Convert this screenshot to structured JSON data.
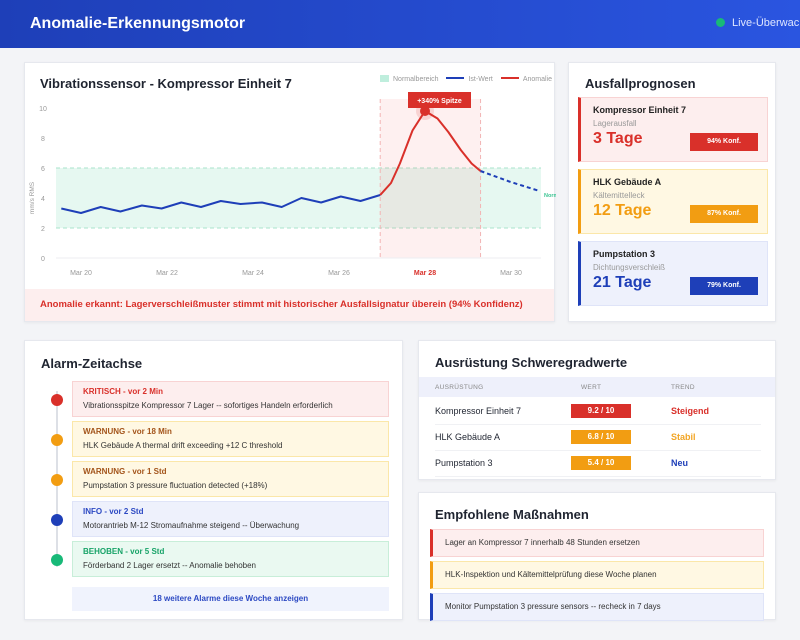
{
  "header": {
    "title": "Anomalie-Erkennungsmotor",
    "status": "Live-Überwachung",
    "status_color": "#18b978"
  },
  "chart": {
    "title": "Vibrationssensor - Kompressor Einheit 7",
    "legend": [
      "Normalbereich",
      "Ist-Wert",
      "Anomalie"
    ],
    "spike_label": "+340% Spitze",
    "anomaly_message": "Anomalie erkannt: Lagerverschleißmuster stimmt mit historischer Ausfallsignatur überein (94% Konfidenz)"
  },
  "chart_data": {
    "type": "line",
    "title": "Vibrationssensor - Kompressor Einheit 7",
    "ylabel": "mm/s RMS",
    "ylim": [
      0,
      10
    ],
    "yticks": [
      "0",
      "2",
      "4",
      "6",
      "8",
      "10"
    ],
    "xticks": [
      "Mar 20",
      "Mar 22",
      "Mar 24",
      "Mar 26",
      "Mar 28",
      "Mar 30"
    ],
    "highlight_xtick": "Mar 28",
    "grid": false,
    "legend_position": "top-right",
    "normal_band": {
      "label": "Normal",
      "range": [
        2,
        6
      ],
      "color": "#bfeedd"
    },
    "anomaly_window": [
      "Mar 26 23:00",
      "Mar 29 07:00"
    ],
    "series": [
      {
        "name": "Ist-Wert",
        "color": "#1e3fb8",
        "style": "solid",
        "points": [
          [
            "Mar 19 13:00",
            3.3
          ],
          [
            "Mar 20 00:00",
            3.0
          ],
          [
            "Mar 20 11:00",
            3.4
          ],
          [
            "Mar 20 22:00",
            3.1
          ],
          [
            "Mar 21 10:00",
            3.5
          ],
          [
            "Mar 21 21:00",
            3.3
          ],
          [
            "Mar 22 08:00",
            3.7
          ],
          [
            "Mar 22 19:00",
            3.4
          ],
          [
            "Mar 23 06:00",
            3.8
          ],
          [
            "Mar 23 17:00",
            3.6
          ],
          [
            "Mar 24 05:00",
            3.7
          ],
          [
            "Mar 24 16:00",
            3.4
          ],
          [
            "Mar 25 03:00",
            4.0
          ],
          [
            "Mar 25 14:00",
            3.7
          ],
          [
            "Mar 26 01:00",
            4.1
          ],
          [
            "Mar 26 12:00",
            3.8
          ],
          [
            "Mar 26 23:00",
            4.2
          ]
        ]
      },
      {
        "name": "Anomalie",
        "color": "#d9302a",
        "style": "solid",
        "points": [
          [
            "Mar 26 23:00",
            4.2
          ],
          [
            "Mar 27 05:00",
            5.0
          ],
          [
            "Mar 27 10:00",
            6.3
          ],
          [
            "Mar 27 17:00",
            8.5
          ],
          [
            "Mar 28 00:00",
            9.8
          ],
          [
            "Mar 28 07:00",
            9.3
          ],
          [
            "Mar 28 13:00",
            8.4
          ],
          [
            "Mar 28 20:00",
            7.2
          ],
          [
            "Mar 29 02:00",
            6.3
          ],
          [
            "Mar 29 07:00",
            5.8
          ]
        ]
      },
      {
        "name": "Prognose",
        "color": "#1e3fb8",
        "style": "dashed",
        "points": [
          [
            "Mar 29 07:00",
            5.8
          ],
          [
            "Mar 29 23:00",
            5.1
          ],
          [
            "Mar 30 15:00",
            4.5
          ]
        ]
      }
    ],
    "peak": [
      "Mar 28 00:00",
      9.8
    ]
  },
  "forecast": {
    "title": "Ausfallprognosen",
    "items": [
      {
        "name": "Kompressor Einheit 7",
        "issue": "Lagerausfall",
        "days": "3 Tage",
        "conf": "94% Konf.",
        "color": "#d9302a",
        "bg": "#fdeeee",
        "border": "#f8d3d3"
      },
      {
        "name": "HLK Gebäude A",
        "issue": "Kältemittelleck",
        "days": "12 Tage",
        "conf": "87% Konf.",
        "color": "#f29d12",
        "bg": "#fff8e3",
        "border": "#fbe7a9"
      },
      {
        "name": "Pumpstation 3",
        "issue": "Dichtungsverschleiß",
        "days": "21 Tage",
        "conf": "79% Konf.",
        "color": "#1e3fb8",
        "bg": "#eef1fc",
        "border": "#dfe4f8"
      }
    ]
  },
  "alarms": {
    "title": "Alarm-Zeitachse",
    "items": [
      {
        "head": "KRITISCH - vor 2 Min",
        "text": "Vibrationsspitze Kompressor 7 Lager -- sofortiges Handeln erforderlich",
        "color": "#d9302a",
        "dot": "#d9302a",
        "bg": "#fdeeee",
        "border": "#f8d3d3"
      },
      {
        "head": "WARNUNG - vor 18 Min",
        "text": "HLK Gebäude A thermal drift exceeding +12 C threshold",
        "color": "#a3541a",
        "dot": "#f29d12",
        "bg": "#fff8e3",
        "border": "#fbe7a9"
      },
      {
        "head": "WARNUNG - vor 1 Std",
        "text": "Pumpstation 3 pressure fluctuation detected (+18%)",
        "color": "#a3541a",
        "dot": "#f29d12",
        "bg": "#fff8e3",
        "border": "#fbe7a9"
      },
      {
        "head": "INFO - vor 2 Std",
        "text": "Motorantrieb M-12 Stromaufnahme steigend -- Überwachung",
        "color": "#2c49c3",
        "dot": "#1e3fb8",
        "bg": "#eef1fc",
        "border": "#dfe4f8"
      },
      {
        "head": "BEHOBEN - vor 5 Std",
        "text": "Förderband 2 Lager ersetzt -- Anomalie behoben",
        "color": "#18a368",
        "dot": "#18b978",
        "bg": "#eaf9f1",
        "border": "#c8eed9"
      }
    ],
    "more": "18 weitere Alarme diese Woche anzeigen"
  },
  "equipment": {
    "title": "Ausrüstung Schweregradwerte",
    "columns": [
      "AUSRÜSTUNG",
      "WERT",
      "TREND"
    ],
    "rows": [
      {
        "name": "Kompressor Einheit 7",
        "value": "9.2 / 10",
        "trend": "Steigend",
        "pill": "#d9302a",
        "trend_color": "#d9302a"
      },
      {
        "name": "HLK Gebäude A",
        "value": "6.8 / 10",
        "trend": "Stabil",
        "pill": "#f29d12",
        "trend_color": "#f2a524"
      },
      {
        "name": "Pumpstation 3",
        "value": "5.4 / 10",
        "trend": "Neu",
        "pill": "#f29d12",
        "trend_color": "#1e3fb8"
      }
    ]
  },
  "actions": {
    "title": "Empfohlene Maßnahmen",
    "items": [
      {
        "text": "Lager an Kompressor 7 innerhalb 48 Stunden ersetzen",
        "color": "#d9302a",
        "bg": "#fdeeee",
        "border": "#f8d3d3"
      },
      {
        "text": "HLK-Inspektion und Kältemittelprüfung diese Woche planen",
        "color": "#f29d12",
        "bg": "#fff8e3",
        "border": "#fbe7a9"
      },
      {
        "text": "Monitor Pumpstation 3 pressure sensors -- recheck in 7 days",
        "color": "#1e3fb8",
        "bg": "#eef1fc",
        "border": "#dfe4f8"
      }
    ]
  }
}
